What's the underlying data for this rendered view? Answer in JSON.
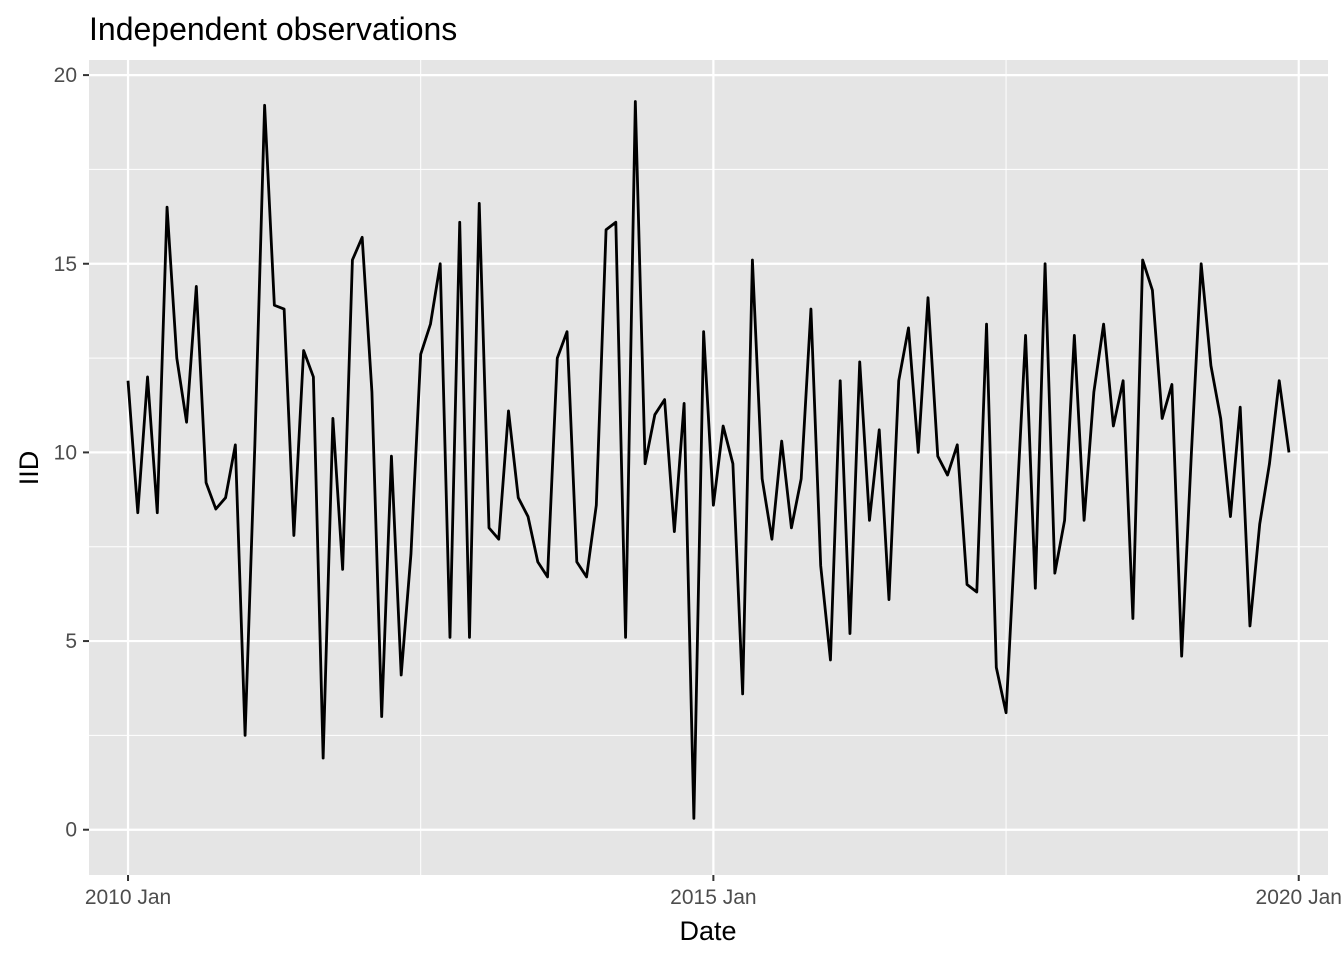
{
  "chart_data": {
    "type": "line",
    "title": "Independent observations",
    "xlabel": "Date",
    "ylabel": "IID",
    "x_start": "2010 Jan",
    "x_frequency": "month",
    "xlim": [
      "2009 Sep",
      "2020 Apr"
    ],
    "ylim": [
      -1.2,
      20.4
    ],
    "xticks": [
      "2010 Jan",
      "2015 Jan",
      "2020 Jan"
    ],
    "yticks": [
      0,
      5,
      10,
      15,
      20
    ],
    "grid": true,
    "legend": "none",
    "background_color": "#e5e5e5",
    "line_color": "#000000",
    "grid_color": "#ffffff",
    "series": [
      {
        "values": [
          11.9,
          8.4,
          12.0,
          8.4,
          16.5,
          12.5,
          10.8,
          14.4,
          9.2,
          8.5,
          8.8,
          10.2,
          2.5,
          10.2,
          19.2,
          13.9,
          13.8,
          7.8,
          12.7,
          12.0,
          1.9,
          10.9,
          6.9,
          15.1,
          15.7,
          11.6,
          3.0,
          9.9,
          4.1,
          7.3,
          12.6,
          13.4,
          15.0,
          5.1,
          16.1,
          5.1,
          16.6,
          8.0,
          7.7,
          11.1,
          8.8,
          8.3,
          7.1,
          6.7,
          12.5,
          13.2,
          7.1,
          6.7,
          8.6,
          15.9,
          16.1,
          5.1,
          19.3,
          9.7,
          11.0,
          11.4,
          7.9,
          11.3,
          0.3,
          13.2,
          8.6,
          10.7,
          9.7,
          3.6,
          15.1,
          9.3,
          7.7,
          10.3,
          8.0,
          9.3,
          13.8,
          7.0,
          4.5,
          11.9,
          5.2,
          12.4,
          8.2,
          10.6,
          6.1,
          11.9,
          13.3,
          10.0,
          14.1,
          9.9,
          9.4,
          10.2,
          6.5,
          6.3,
          13.4,
          4.3,
          3.1,
          8.1,
          13.1,
          6.4,
          15.0,
          6.8,
          8.2,
          13.1,
          8.2,
          11.6,
          13.4,
          10.7,
          11.9,
          5.6,
          15.1,
          14.3,
          10.9,
          11.8,
          4.6,
          10.0,
          15.0,
          12.3,
          10.9,
          8.3,
          11.2,
          5.4,
          8.1,
          9.7,
          11.9,
          10.0
        ]
      }
    ]
  }
}
